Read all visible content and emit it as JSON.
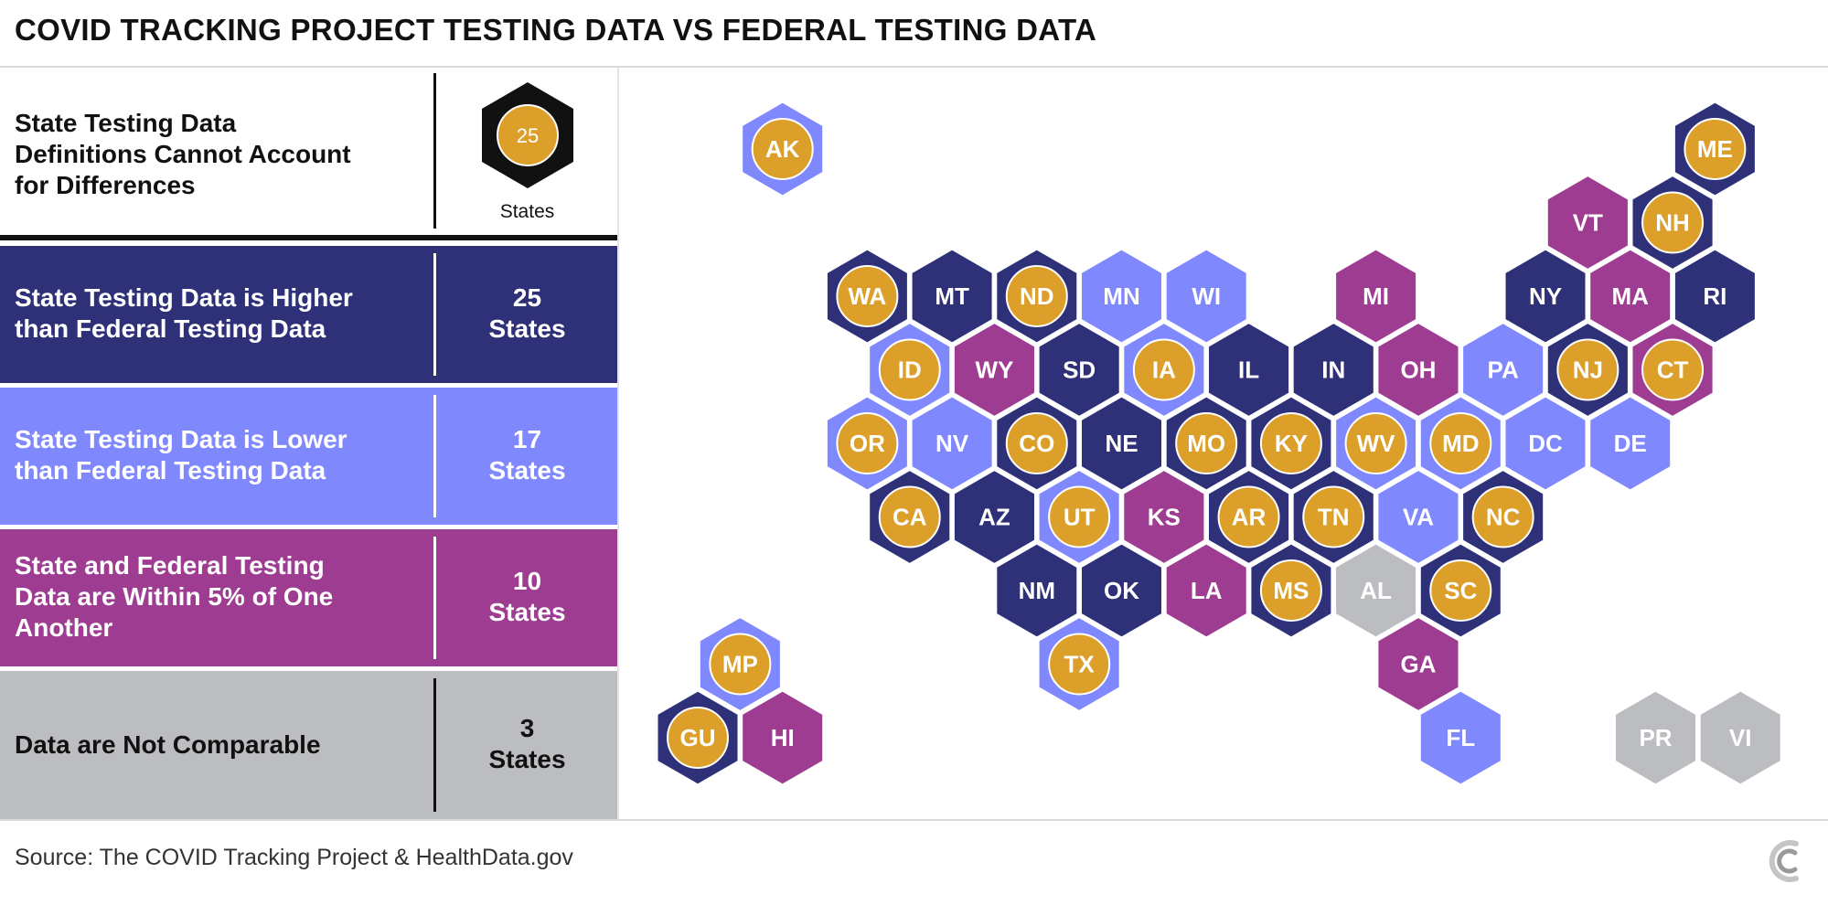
{
  "title": "COVID TRACKING PROJECT TESTING DATA VS FEDERAL TESTING DATA",
  "colors": {
    "higher": "#2e3178",
    "lower": "#8088fe",
    "within": "#9e3c92",
    "not_comparable": "#bcbdc0",
    "definitions_marker": "#dc9f2a"
  },
  "legend": {
    "definitions": {
      "label_lines": [
        "State Testing Data",
        "Definitions Cannot Account",
        "for Differences"
      ],
      "count": "25",
      "caption": "States"
    },
    "higher": {
      "label_lines": [
        "State Testing Data is Higher",
        "than Federal Testing Data"
      ],
      "count_lines": [
        "25",
        "States"
      ]
    },
    "lower": {
      "label_lines": [
        "State Testing Data is Lower",
        "than Federal Testing Data"
      ],
      "count_lines": [
        "17",
        "States"
      ]
    },
    "within": {
      "label_lines": [
        "State and Federal Testing",
        "Data are Within 5% of One",
        "Another"
      ],
      "count_lines": [
        "10",
        "States"
      ]
    },
    "not_comparable": {
      "label_lines": [
        "Data are Not Comparable"
      ],
      "count_lines": [
        "3",
        "States"
      ]
    }
  },
  "chart_data": {
    "type": "hex tile map",
    "title": "COVID TRACKING PROJECT TESTING DATA VS FEDERAL TESTING DATA",
    "categories": [
      "higher",
      "lower",
      "within",
      "not_comparable"
    ],
    "tiles": [
      {
        "state": "AK",
        "category": "lower",
        "col": 1,
        "row": 0,
        "marker": true
      },
      {
        "state": "ME",
        "category": "higher",
        "col": 12,
        "row": 0,
        "marker": true
      },
      {
        "state": "VT",
        "category": "within",
        "col": 10.5,
        "row": 1,
        "marker": false
      },
      {
        "state": "NH",
        "category": "higher",
        "col": 11.5,
        "row": 1,
        "marker": true
      },
      {
        "state": "WA",
        "category": "higher",
        "col": 2,
        "row": 2,
        "marker": true
      },
      {
        "state": "MT",
        "category": "higher",
        "col": 3,
        "row": 2,
        "marker": false
      },
      {
        "state": "ND",
        "category": "higher",
        "col": 4,
        "row": 2,
        "marker": true
      },
      {
        "state": "MN",
        "category": "lower",
        "col": 5,
        "row": 2,
        "marker": false
      },
      {
        "state": "WI",
        "category": "lower",
        "col": 6,
        "row": 2,
        "marker": false
      },
      {
        "state": "MI",
        "category": "within",
        "col": 8,
        "row": 2,
        "marker": false
      },
      {
        "state": "NY",
        "category": "higher",
        "col": 10,
        "row": 2,
        "marker": false
      },
      {
        "state": "MA",
        "category": "within",
        "col": 11,
        "row": 2,
        "marker": false
      },
      {
        "state": "RI",
        "category": "higher",
        "col": 12,
        "row": 2,
        "marker": false
      },
      {
        "state": "ID",
        "category": "lower",
        "col": 2.5,
        "row": 3,
        "marker": true
      },
      {
        "state": "WY",
        "category": "within",
        "col": 3.5,
        "row": 3,
        "marker": false
      },
      {
        "state": "SD",
        "category": "higher",
        "col": 4.5,
        "row": 3,
        "marker": false
      },
      {
        "state": "IA",
        "category": "lower",
        "col": 5.5,
        "row": 3,
        "marker": true
      },
      {
        "state": "IL",
        "category": "higher",
        "col": 6.5,
        "row": 3,
        "marker": false
      },
      {
        "state": "IN",
        "category": "higher",
        "col": 7.5,
        "row": 3,
        "marker": false
      },
      {
        "state": "OH",
        "category": "within",
        "col": 8.5,
        "row": 3,
        "marker": false
      },
      {
        "state": "PA",
        "category": "lower",
        "col": 9.5,
        "row": 3,
        "marker": false
      },
      {
        "state": "NJ",
        "category": "higher",
        "col": 10.5,
        "row": 3,
        "marker": true
      },
      {
        "state": "CT",
        "category": "within",
        "col": 11.5,
        "row": 3,
        "marker": true
      },
      {
        "state": "OR",
        "category": "lower",
        "col": 2,
        "row": 4,
        "marker": true
      },
      {
        "state": "NV",
        "category": "lower",
        "col": 3,
        "row": 4,
        "marker": false
      },
      {
        "state": "CO",
        "category": "higher",
        "col": 4,
        "row": 4,
        "marker": true
      },
      {
        "state": "NE",
        "category": "higher",
        "col": 5,
        "row": 4,
        "marker": false
      },
      {
        "state": "MO",
        "category": "higher",
        "col": 6,
        "row": 4,
        "marker": true
      },
      {
        "state": "KY",
        "category": "higher",
        "col": 7,
        "row": 4,
        "marker": true
      },
      {
        "state": "WV",
        "category": "lower",
        "col": 8,
        "row": 4,
        "marker": true
      },
      {
        "state": "MD",
        "category": "lower",
        "col": 9,
        "row": 4,
        "marker": true
      },
      {
        "state": "DC",
        "category": "lower",
        "col": 10,
        "row": 4,
        "marker": false
      },
      {
        "state": "DE",
        "category": "lower",
        "col": 11,
        "row": 4,
        "marker": false
      },
      {
        "state": "CA",
        "category": "higher",
        "col": 2.5,
        "row": 5,
        "marker": true
      },
      {
        "state": "AZ",
        "category": "higher",
        "col": 3.5,
        "row": 5,
        "marker": false
      },
      {
        "state": "UT",
        "category": "lower",
        "col": 4.5,
        "row": 5,
        "marker": true
      },
      {
        "state": "KS",
        "category": "within",
        "col": 5.5,
        "row": 5,
        "marker": false
      },
      {
        "state": "AR",
        "category": "higher",
        "col": 6.5,
        "row": 5,
        "marker": true
      },
      {
        "state": "TN",
        "category": "higher",
        "col": 7.5,
        "row": 5,
        "marker": true
      },
      {
        "state": "VA",
        "category": "lower",
        "col": 8.5,
        "row": 5,
        "marker": false
      },
      {
        "state": "NC",
        "category": "higher",
        "col": 9.5,
        "row": 5,
        "marker": true
      },
      {
        "state": "NM",
        "category": "higher",
        "col": 4,
        "row": 6,
        "marker": false
      },
      {
        "state": "OK",
        "category": "higher",
        "col": 5,
        "row": 6,
        "marker": false
      },
      {
        "state": "LA",
        "category": "within",
        "col": 6,
        "row": 6,
        "marker": false
      },
      {
        "state": "MS",
        "category": "higher",
        "col": 7,
        "row": 6,
        "marker": true
      },
      {
        "state": "AL",
        "category": "not_comparable",
        "col": 8,
        "row": 6,
        "marker": false
      },
      {
        "state": "SC",
        "category": "higher",
        "col": 9,
        "row": 6,
        "marker": true
      },
      {
        "state": "TX",
        "category": "lower",
        "col": 4.5,
        "row": 7,
        "marker": true
      },
      {
        "state": "GA",
        "category": "within",
        "col": 8.5,
        "row": 7,
        "marker": false
      },
      {
        "state": "FL",
        "category": "lower",
        "col": 9,
        "row": 8,
        "marker": false
      },
      {
        "state": "MP",
        "category": "lower",
        "col": 0.5,
        "row": 7,
        "marker": true
      },
      {
        "state": "GU",
        "category": "higher",
        "col": 0,
        "row": 8,
        "marker": true
      },
      {
        "state": "HI",
        "category": "within",
        "col": 1,
        "row": 8,
        "marker": false
      },
      {
        "state": "PR",
        "category": "not_comparable",
        "col": 11.3,
        "row": 8,
        "marker": false
      },
      {
        "state": "VI",
        "category": "not_comparable",
        "col": 12.3,
        "row": 8,
        "marker": false
      }
    ]
  },
  "source": "Source: The COVID Tracking Project & HealthData.gov",
  "logo_icon": "covid-tracking-project-logo-icon"
}
